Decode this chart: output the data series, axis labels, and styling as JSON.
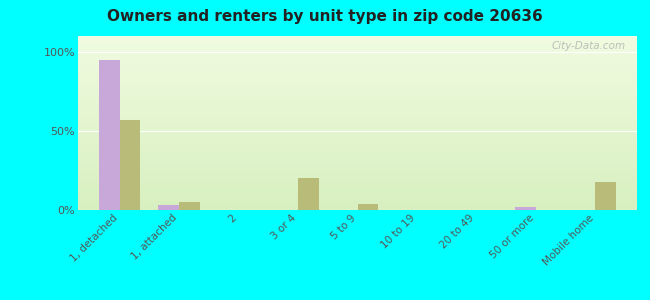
{
  "title": "Owners and renters by unit type in zip code 20636",
  "categories": [
    "1, detached",
    "1, attached",
    "2",
    "3 or 4",
    "5 to 9",
    "10 to 19",
    "20 to 49",
    "50 or more",
    "Mobile home"
  ],
  "owner_values": [
    95,
    3,
    0,
    0,
    0,
    0,
    0,
    2,
    0
  ],
  "renter_values": [
    57,
    5,
    0,
    20,
    4,
    0,
    0,
    0,
    18
  ],
  "owner_color": "#c8a8d8",
  "renter_color": "#b8bc78",
  "background_color": "#00ffff",
  "yticks": [
    0,
    50,
    100
  ],
  "ylim": [
    0,
    110
  ],
  "bar_width": 0.35,
  "watermark": "City-Data.com"
}
